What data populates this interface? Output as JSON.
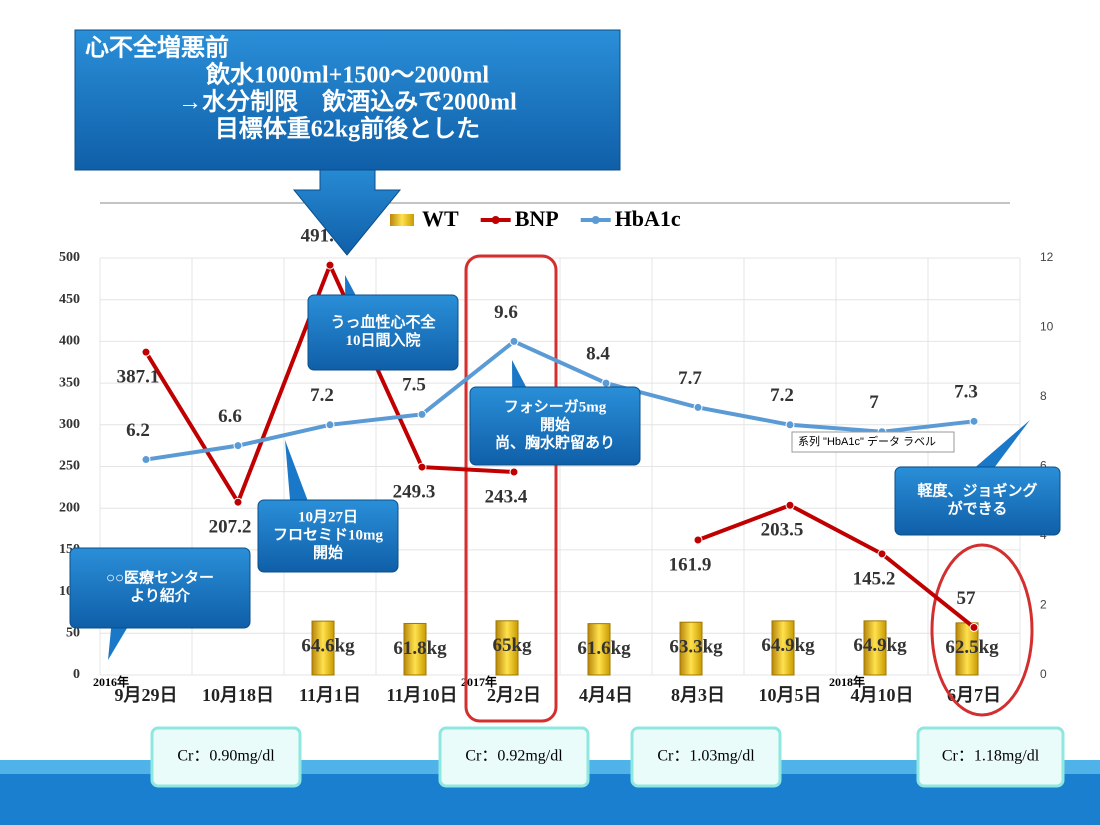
{
  "chart_data": {
    "type": "combo",
    "categories": [
      "9月29日",
      "10月18日",
      "11月1日",
      "11月10日",
      "2月2日",
      "4月4日",
      "8月3日",
      "10月5日",
      "4月10日",
      "6月7日"
    ],
    "year_labels": [
      "2016年",
      null,
      null,
      null,
      "2017年",
      null,
      null,
      null,
      "2018年",
      null
    ],
    "series": [
      {
        "name": "WT",
        "type": "bar",
        "color": "#f2c500",
        "values": [
          null,
          null,
          64.6,
          61.8,
          65,
          61.6,
          63.3,
          64.9,
          64.9,
          62.5
        ],
        "value_labels": [
          null,
          null,
          "64.6kg",
          "61.8kg",
          "65kg",
          "61.6kg",
          "63.3kg",
          "64.9kg",
          "64.9kg",
          "62.5kg"
        ]
      },
      {
        "name": "BNP",
        "type": "line",
        "color": "#c00000",
        "values": [
          387.1,
          207.2,
          491.5,
          249.3,
          243.4,
          null,
          161.9,
          203.5,
          145.2,
          57
        ]
      },
      {
        "name": "HbA1c",
        "type": "line",
        "axis": "y2",
        "color": "#5b9bd5",
        "values": [
          6.2,
          6.6,
          7.2,
          7.5,
          9.6,
          8.4,
          7.7,
          7.2,
          7,
          7.3
        ]
      }
    ],
    "ylim": [
      0,
      500
    ],
    "yticks": [
      0,
      50,
      100,
      150,
      200,
      250,
      300,
      350,
      400,
      450,
      500
    ],
    "y2lim": [
      0,
      12
    ],
    "y2ticks": [
      0,
      2,
      4,
      6,
      8,
      10,
      12
    ],
    "grid": true,
    "annotations": [
      {
        "lines": [
          "心不全増悪前",
          "飲水1000ml+1500～2000ml",
          "→水分制限　飲酒込みで2000ml",
          "目標体重62kg前後とした"
        ]
      },
      {
        "lines": [
          "うっ血性心不全",
          "10日間入院"
        ]
      },
      {
        "lines": [
          "フォシーガ5mg",
          "開始",
          "尚、胸水貯留あり"
        ]
      },
      {
        "lines": [
          "10月27日",
          "フロセミド10mg",
          "開始"
        ]
      },
      {
        "lines": [
          "○○医療センター",
          "より紹介"
        ]
      },
      {
        "lines": [
          "軽度、ジョギング",
          "ができる"
        ]
      }
    ],
    "tooltip": "系列 \"HbA1c\" データ ラベル",
    "cr_labels": [
      "Cr：0.90mg/dl",
      "Cr：0.92mg/dl",
      "Cr：1.03mg/dl",
      "Cr：1.18mg/dl"
    ]
  }
}
